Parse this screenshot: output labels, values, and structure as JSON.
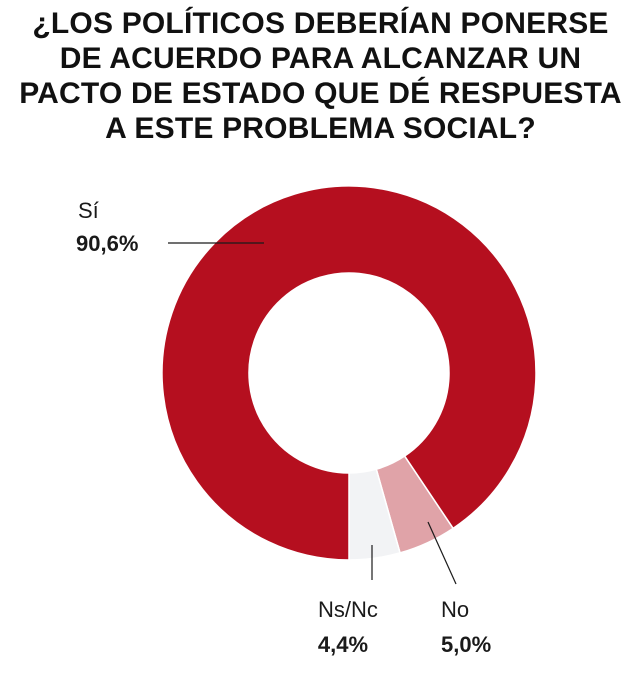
{
  "title_lines": [
    "¿LOS POLÍTICOS DEBERÍAN PONERSE",
    "DE ACUERDO PARA ALCANZAR UN",
    "PACTO DE ESTADO QUE DÉ RESPUESTA",
    "A ESTE PROBLEMA SOCIAL?"
  ],
  "chart_data": {
    "type": "pie",
    "style": "donut",
    "title": "¿LOS POLÍTICOS DEBERÍAN PONERSE DE ACUERDO PARA ALCANZAR UN PACTO DE ESTADO QUE DÉ RESPUESTA A ESTE PROBLEMA SOCIAL?",
    "slices": [
      {
        "name": "Sí",
        "value": 90.6,
        "label": "90,6%",
        "color": "#b50f1f"
      },
      {
        "name": "No",
        "value": 5.0,
        "label": "5,0%",
        "color": "#e0a3a8"
      },
      {
        "name": "Ns/Nc",
        "value": 4.4,
        "label": "4,4%",
        "color": "#f2f3f5"
      }
    ]
  }
}
